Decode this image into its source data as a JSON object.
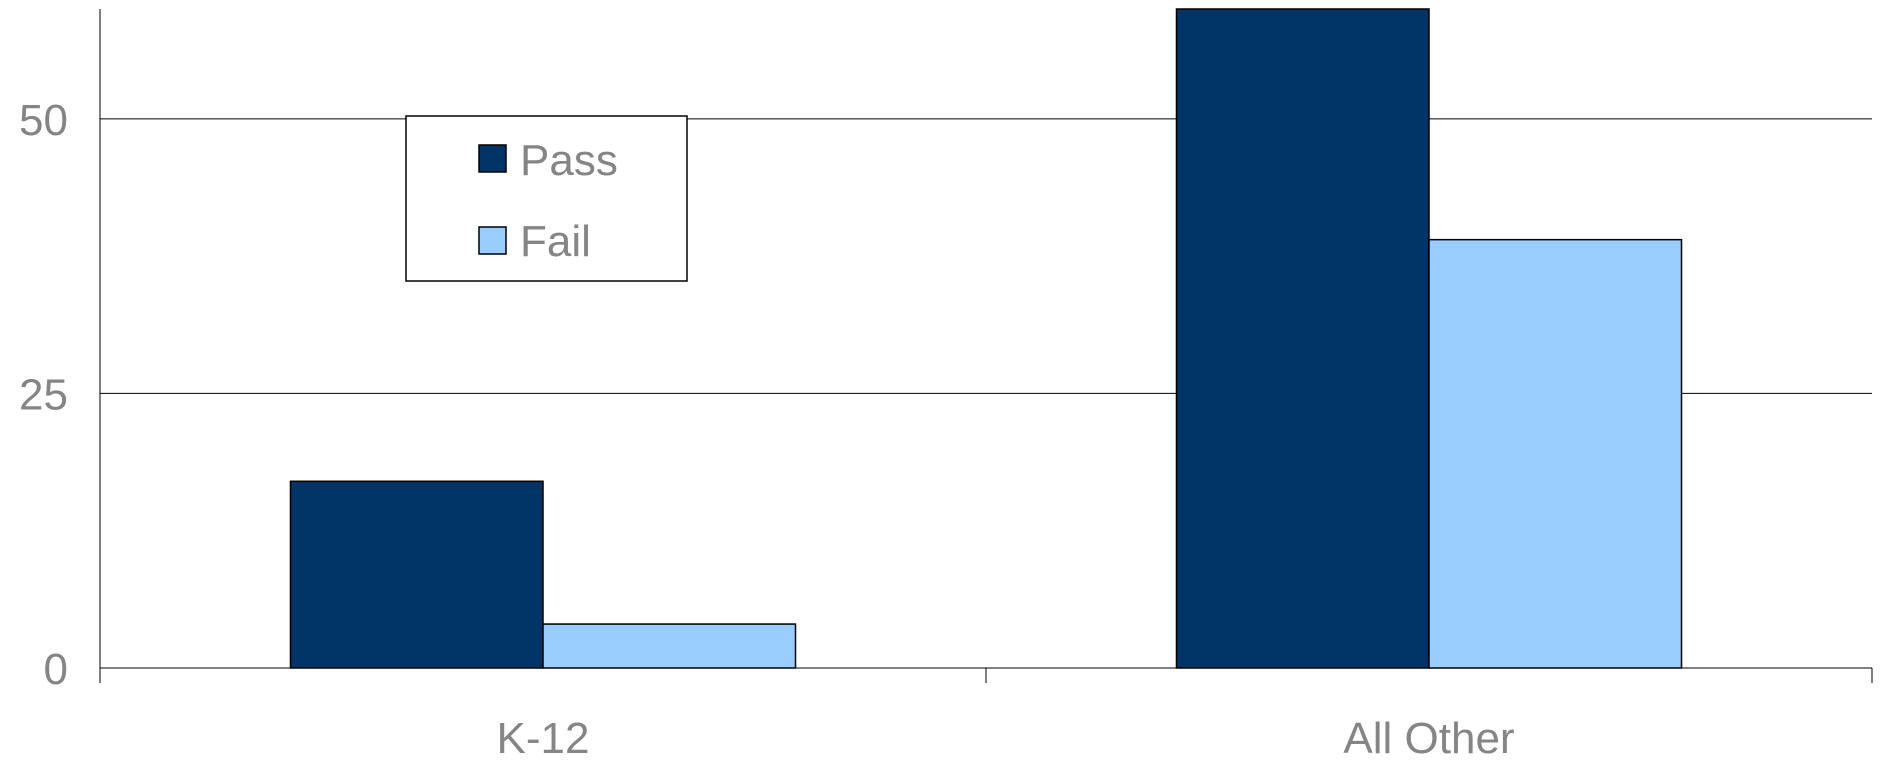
{
  "chart_data": {
    "type": "bar",
    "title": "",
    "xlabel": "",
    "ylabel": "",
    "categories": [
      "K-12",
      "All Other"
    ],
    "series": [
      {
        "name": "Pass",
        "values": [
          17,
          60
        ],
        "color": "#003366"
      },
      {
        "name": "Fail",
        "values": [
          4,
          39
        ],
        "color": "#99CCFF"
      }
    ],
    "ylim": [
      0,
      60
    ],
    "yticks": [
      0,
      25,
      50
    ],
    "grid": true,
    "legend": {
      "position": "top-left"
    }
  }
}
